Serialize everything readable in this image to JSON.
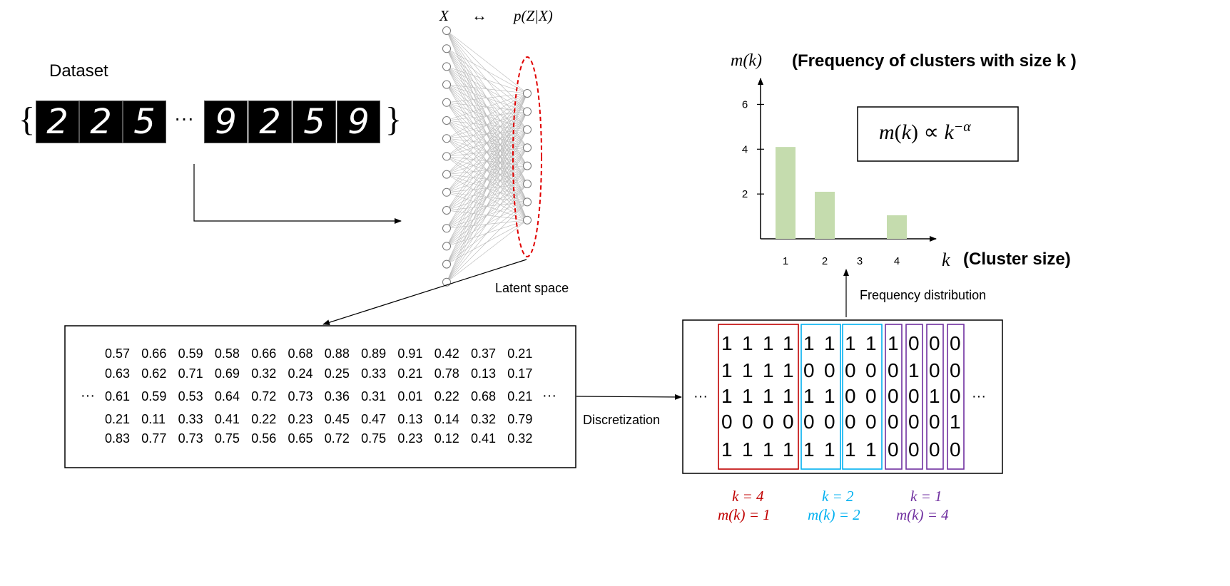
{
  "dataset": {
    "title": "Dataset",
    "brace_open": "{",
    "brace_close": "}",
    "ellipsis": "···",
    "digits": [
      "2",
      "2",
      "5",
      "9",
      "2",
      "5",
      "9"
    ]
  },
  "network": {
    "label_x": "X",
    "label_arrow": "↔",
    "label_p": "p(Z|X)",
    "latent_label": "Latent space",
    "input_nodes": 15,
    "latent_nodes": 8
  },
  "latent_matrix": {
    "ellipsis_left": "···",
    "ellipsis_right": "···",
    "rows": [
      [
        "0.57",
        "0.66",
        "0.59",
        "0.58",
        "0.66",
        "0.68",
        "0.88",
        "0.89",
        "0.91",
        "0.42",
        "0.37",
        "0.21"
      ],
      [
        "0.63",
        "0.62",
        "0.71",
        "0.69",
        "0.32",
        "0.24",
        "0.25",
        "0.33",
        "0.21",
        "0.78",
        "0.13",
        "0.17"
      ],
      [
        "0.61",
        "0.59",
        "0.53",
        "0.64",
        "0.72",
        "0.73",
        "0.36",
        "0.31",
        "0.01",
        "0.22",
        "0.68",
        "0.21"
      ],
      [
        "0.21",
        "0.11",
        "0.33",
        "0.41",
        "0.22",
        "0.23",
        "0.45",
        "0.47",
        "0.13",
        "0.14",
        "0.32",
        "0.79"
      ],
      [
        "0.83",
        "0.77",
        "0.73",
        "0.75",
        "0.56",
        "0.65",
        "0.72",
        "0.75",
        "0.23",
        "0.12",
        "0.41",
        "0.32"
      ]
    ]
  },
  "discretization_label": "Discretization",
  "binary_matrix": {
    "ellipsis_left": "···",
    "ellipsis_right": "···",
    "rows": [
      [
        "1",
        "1",
        "1",
        "1",
        "1",
        "1",
        "1",
        "1",
        "1",
        "0",
        "0",
        "0"
      ],
      [
        "1",
        "1",
        "1",
        "1",
        "0",
        "0",
        "0",
        "0",
        "0",
        "1",
        "0",
        "0"
      ],
      [
        "1",
        "1",
        "1",
        "1",
        "1",
        "1",
        "0",
        "0",
        "0",
        "0",
        "1",
        "0"
      ],
      [
        "0",
        "0",
        "0",
        "0",
        "0",
        "0",
        "0",
        "0",
        "0",
        "0",
        "0",
        "1"
      ],
      [
        "1",
        "1",
        "1",
        "1",
        "1",
        "1",
        "1",
        "1",
        "0",
        "0",
        "0",
        "0"
      ]
    ],
    "groups": [
      {
        "k": "k = 4",
        "m": "m(k) = 1",
        "color": "#c00000"
      },
      {
        "k": "k = 2",
        "m": "m(k) = 2",
        "color": "#00b0f0"
      },
      {
        "k": "k = 1",
        "m": "m(k) = 4",
        "color": "#7030a0"
      }
    ]
  },
  "frequency_label": "Frequency distribution",
  "chart_data": {
    "type": "bar",
    "categories": [
      "1",
      "2",
      "3",
      "4"
    ],
    "values": [
      4.1,
      2.1,
      0,
      1.05
    ],
    "ylabel": "m(k)",
    "ylabel_desc": "(Frequency of clusters with size k )",
    "xlabel": "k",
    "xlabel_desc": "(Cluster size)",
    "yticks": [
      "2",
      "4",
      "6"
    ],
    "ylim": [
      0,
      7
    ],
    "bar_color": "#c5dcae",
    "formula": "m(k) ∝ k^{-α}"
  },
  "colors": {
    "latent_oval": "#e00000",
    "arrow": "#000000"
  }
}
